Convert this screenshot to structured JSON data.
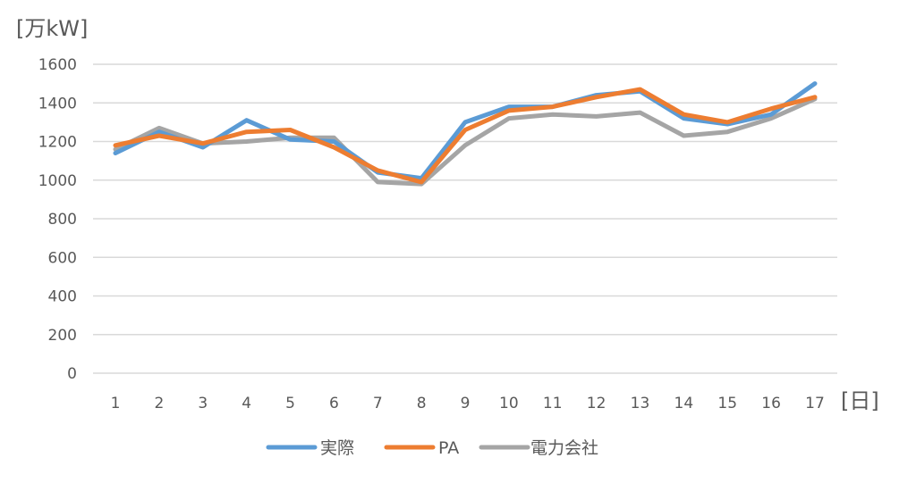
{
  "chart_data": {
    "type": "line",
    "title": "",
    "ylabel": "[万kW]",
    "xlabel": "[日]",
    "ylim": [
      0,
      1600
    ],
    "yticks": [
      0,
      200,
      400,
      600,
      800,
      1000,
      1200,
      1400,
      1600
    ],
    "x": [
      "1",
      "2",
      "3",
      "4",
      "5",
      "6",
      "7",
      "8",
      "9",
      "10",
      "11",
      "12",
      "13",
      "14",
      "15",
      "16",
      "17"
    ],
    "grid": true,
    "legend_position": "bottom",
    "series": [
      {
        "name": "実際",
        "color": "#5b9bd5",
        "values": [
          1140,
          1250,
          1170,
          1310,
          1210,
          1200,
          1040,
          1010,
          1300,
          1380,
          1380,
          1440,
          1460,
          1320,
          1290,
          1340,
          1500
        ]
      },
      {
        "name": "PA",
        "color": "#ed7d31",
        "values": [
          1180,
          1230,
          1190,
          1250,
          1260,
          1170,
          1050,
          990,
          1260,
          1360,
          1380,
          1430,
          1470,
          1340,
          1300,
          1370,
          1430
        ]
      },
      {
        "name": "電力会社",
        "color": "#a5a5a5",
        "values": [
          1160,
          1270,
          1190,
          1200,
          1220,
          1220,
          990,
          980,
          1180,
          1320,
          1340,
          1330,
          1350,
          1230,
          1250,
          1320,
          1420
        ]
      }
    ]
  }
}
